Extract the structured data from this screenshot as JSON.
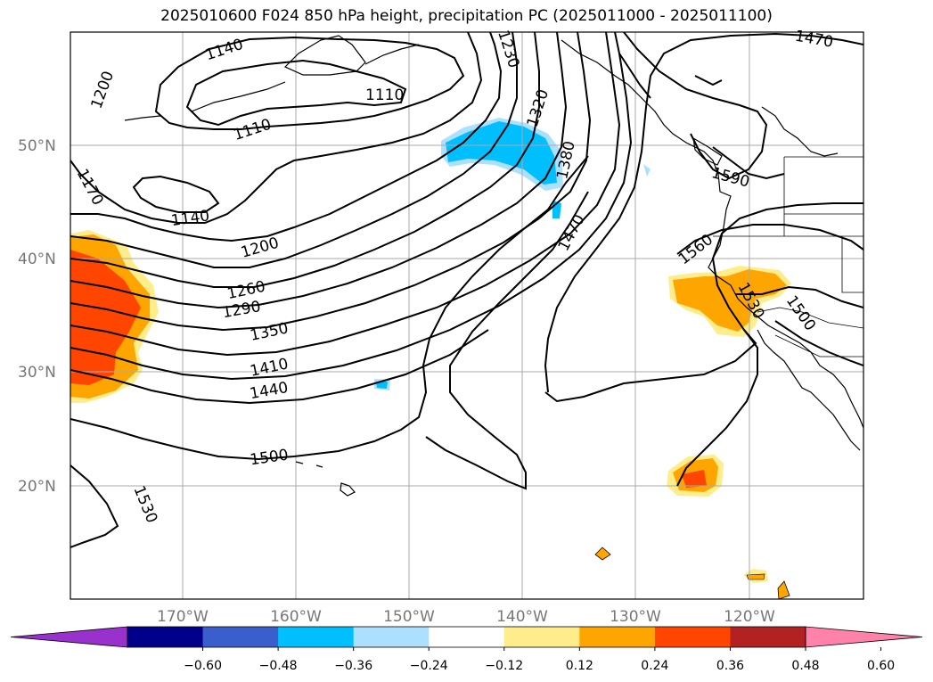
{
  "title": "2025010600 F024 850 hPa height, precipitation PC (2025011000 - 2025011100)",
  "lat_labels": [
    "50°N",
    "40°N",
    "30°N",
    "20°N"
  ],
  "lon_labels": [
    "170°W",
    "160°W",
    "150°W",
    "140°W",
    "130°W",
    "120°W"
  ],
  "contour_labels": [
    "1140",
    "1200",
    "1170",
    "1110",
    "1110",
    "1140",
    "1200",
    "1260",
    "1290",
    "1350",
    "1410",
    "1440",
    "1500",
    "1530",
    "1320",
    "1380",
    "1470",
    "1230",
    "1470",
    "1560",
    "1590",
    "1530",
    "1500"
  ],
  "colorbar": {
    "ticks": [
      "−0.60",
      "−0.48",
      "−0.36",
      "−0.24",
      "−0.12",
      "0.12",
      "0.24",
      "0.36",
      "0.48",
      "0.60"
    ],
    "colors": [
      "#9932CC",
      "#00008B",
      "#3A5FCD",
      "#00BFFF",
      "#ADE0FF",
      "#FFFFFF",
      "#FFEC8B",
      "#FFA500",
      "#FF4500",
      "#B22222",
      "#FF82AB"
    ]
  }
}
